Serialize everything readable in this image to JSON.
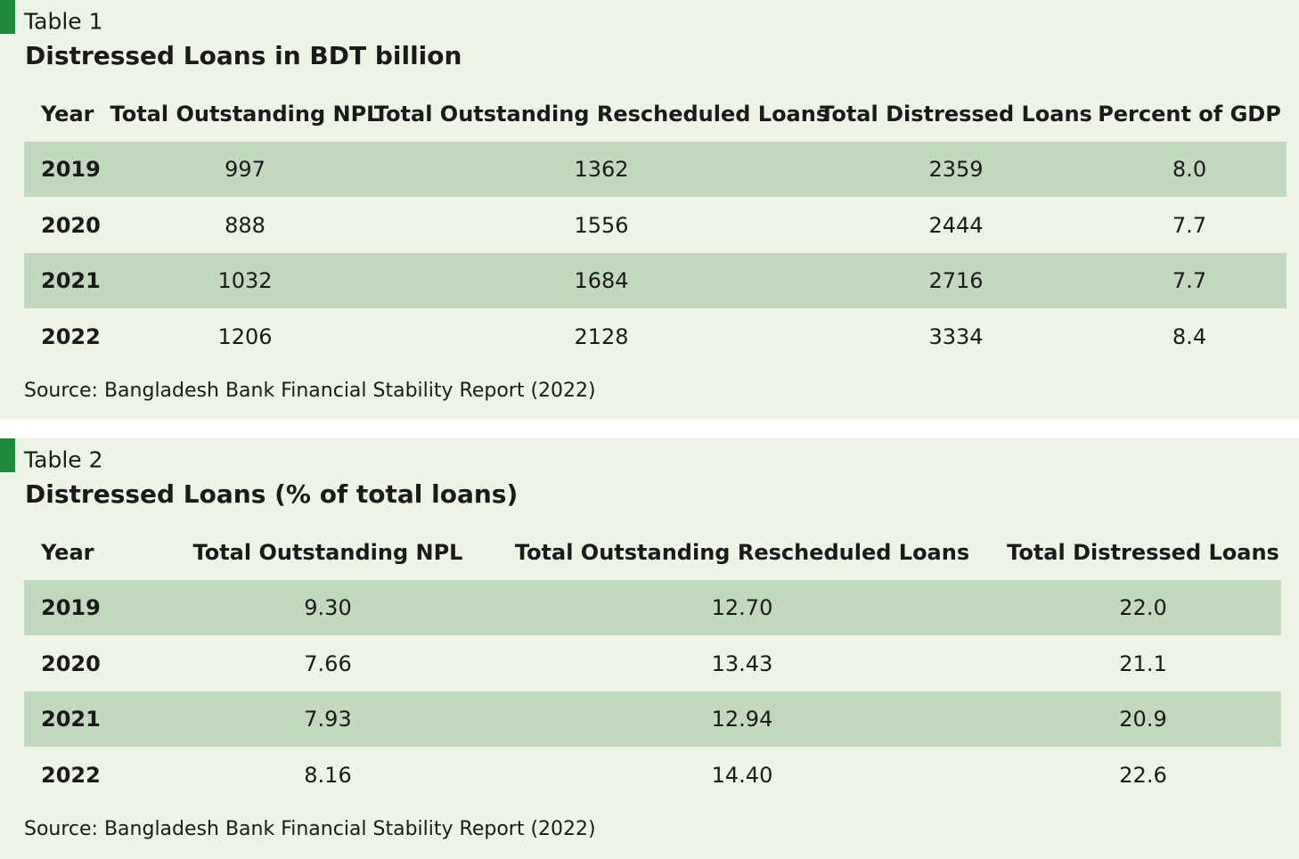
{
  "tables": [
    {
      "label": "Table 1",
      "title": "Distressed Loans in BDT billion",
      "columns": [
        "Year",
        "Total Outstanding NPL",
        "Total Outstanding Rescheduled Loans",
        "Total Distressed Loans",
        "Percent of GDP"
      ],
      "rows": [
        [
          "2019",
          "997",
          "1362",
          "2359",
          "8.0"
        ],
        [
          "2020",
          "888",
          "1556",
          "2444",
          "7.7"
        ],
        [
          "2021",
          "1032",
          "1684",
          "2716",
          "7.7"
        ],
        [
          "2022",
          "1206",
          "2128",
          "3334",
          "8.4"
        ]
      ],
      "source": "Source: Bangladesh Bank Financial Stability Report (2022)"
    },
    {
      "label": "Table 2",
      "title": "Distressed Loans (% of total loans)",
      "columns": [
        "Year",
        "Total Outstanding NPL",
        "Total Outstanding Rescheduled Loans",
        "Total Distressed Loans"
      ],
      "rows": [
        [
          "2019",
          "9.30",
          "12.70",
          "22.0"
        ],
        [
          "2020",
          "7.66",
          "13.43",
          "21.1"
        ],
        [
          "2021",
          "7.93",
          "12.94",
          "20.9"
        ],
        [
          "2022",
          "8.16",
          "14.40",
          "22.6"
        ]
      ],
      "source": "Source: Bangladesh Bank Financial Stability Report (2022)"
    }
  ]
}
